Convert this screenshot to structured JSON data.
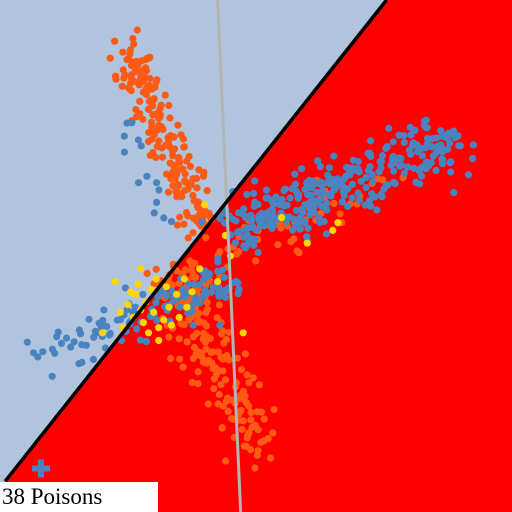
{
  "caption": "38 Poisons",
  "colors": {
    "region_a": "#b0c4de",
    "region_b": "#ff0000",
    "class_orange": "#ff5a14",
    "class_blue": "#4a84c0",
    "poison": "#ffd700",
    "reference_line": "#b4b4b4",
    "boundary": "#000000",
    "plus_marker": "#4a84c0"
  },
  "chart_data": {
    "type": "scatter",
    "title": "",
    "xlabel": "",
    "ylabel": "",
    "xlim": [
      -1,
      1
    ],
    "ylim": [
      -1,
      1
    ],
    "grid": false,
    "legend": "none",
    "decision_boundary": {
      "from": [
        -0.98,
        -0.88
      ],
      "to": [
        0.51,
        1.0
      ]
    },
    "reference_line": {
      "from": [
        -0.15,
        1.0
      ],
      "to": [
        -0.06,
        -1.0
      ]
    },
    "plus_marker": [
      -0.84,
      -0.83
    ],
    "series": [
      {
        "color": "#ff5a14",
        "arms": [
          {
            "start": [
              -0.5,
              0.8
            ],
            "end": [
              -0.2,
              0.1
            ],
            "spread": 0.04,
            "n": 190
          },
          {
            "start": [
              -0.3,
              -0.1
            ],
            "end": [
              0.0,
              -0.75
            ],
            "spread": 0.05,
            "n": 170
          },
          {
            "start": [
              -0.35,
              -0.12
            ],
            "end": [
              0.5,
              0.3
            ],
            "spread": 0.045,
            "n": 70
          }
        ]
      },
      {
        "color": "#4a84c0",
        "arms": [
          {
            "start": [
              -0.1,
              0.1
            ],
            "end": [
              0.75,
              0.45
            ],
            "spread": 0.06,
            "n": 320
          },
          {
            "start": [
              -0.1,
              -0.1
            ],
            "end": [
              -0.85,
              -0.38
            ],
            "spread": 0.045,
            "n": 130
          },
          {
            "start": [
              -0.5,
              0.55
            ],
            "end": [
              -0.35,
              0.1
            ],
            "spread": 0.025,
            "n": 14
          }
        ]
      }
    ],
    "poisons": [
      [
        -0.47,
        -0.15
      ],
      [
        -0.38,
        -0.28
      ],
      [
        -0.52,
        -0.28
      ],
      [
        -0.45,
        -0.21
      ],
      [
        -0.41,
        -0.13
      ],
      [
        -0.34,
        -0.2
      ],
      [
        -0.48,
        -0.24
      ],
      [
        -0.28,
        -0.09
      ],
      [
        -0.43,
        -0.18
      ],
      [
        -0.36,
        -0.25
      ],
      [
        -0.5,
        -0.19
      ],
      [
        -0.31,
        -0.15
      ],
      [
        -0.39,
        -0.09
      ],
      [
        -0.44,
        -0.26
      ],
      [
        -0.27,
        -0.2
      ],
      [
        -0.46,
        -0.11
      ],
      [
        -0.33,
        -0.27
      ],
      [
        -0.4,
        -0.22
      ],
      [
        -0.49,
        -0.14
      ],
      [
        -0.3,
        -0.24
      ],
      [
        -0.42,
        -0.3
      ],
      [
        -0.35,
        -0.12
      ],
      [
        -0.25,
        -0.14
      ],
      [
        -0.53,
        -0.22
      ],
      [
        0.3,
        0.1
      ],
      [
        0.32,
        0.13
      ],
      [
        -0.2,
        0.2
      ],
      [
        -0.1,
        0.0
      ],
      [
        -0.05,
        -0.3
      ],
      [
        0.1,
        0.15
      ],
      [
        -0.15,
        -0.1
      ],
      [
        0.2,
        0.05
      ],
      [
        -0.6,
        -0.3
      ],
      [
        -0.55,
        -0.1
      ],
      [
        -0.45,
        -0.05
      ],
      [
        -0.38,
        -0.33
      ],
      [
        -0.22,
        -0.05
      ],
      [
        -0.12,
        0.08
      ]
    ]
  }
}
